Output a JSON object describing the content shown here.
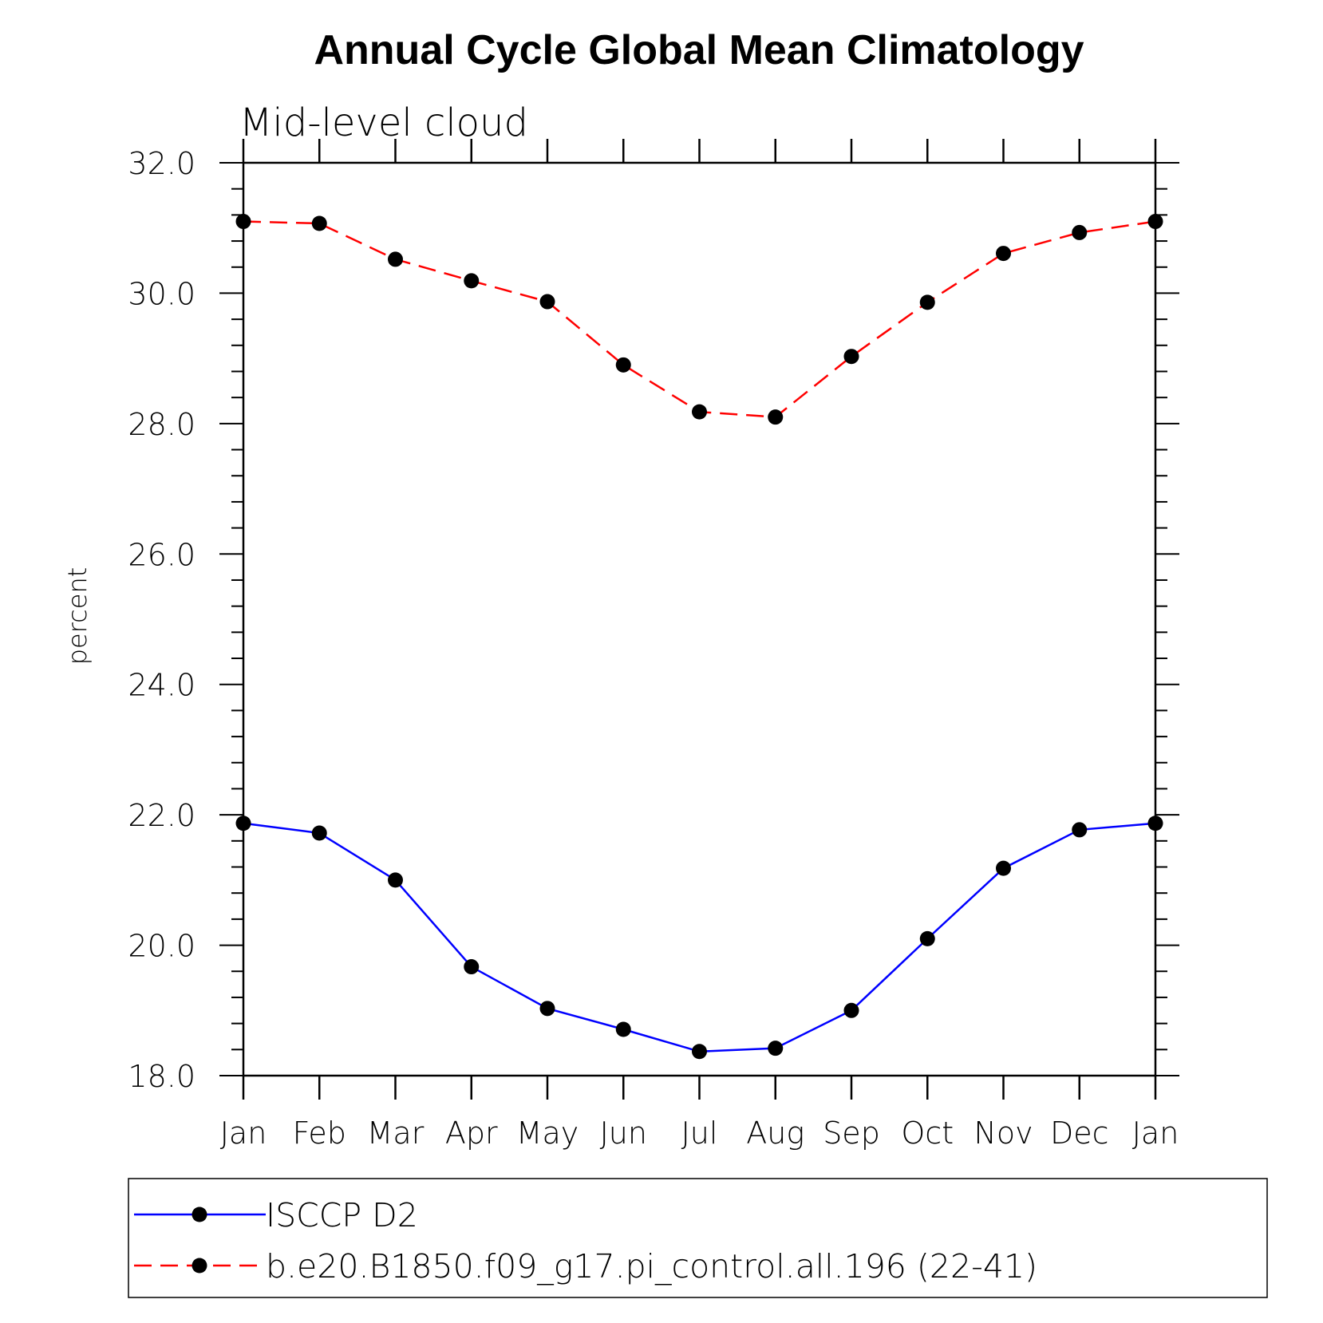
{
  "chart_data": {
    "type": "line",
    "title": "Annual Cycle Global Mean Climatology",
    "subtitle": "Mid-level cloud",
    "xlabel": "",
    "ylabel": "percent",
    "categories": [
      "Jan",
      "Feb",
      "Mar",
      "Apr",
      "May",
      "Jun",
      "Jul",
      "Aug",
      "Sep",
      "Oct",
      "Nov",
      "Dec",
      "Jan"
    ],
    "ylim": [
      18.0,
      32.0
    ],
    "yticks": [
      "18.0",
      "20.0",
      "22.0",
      "24.0",
      "26.0",
      "28.0",
      "30.0",
      "32.0"
    ],
    "grid": false,
    "legend_position": "bottom",
    "series": [
      {
        "name": "ISCCP D2",
        "color": "#0000ff",
        "line_style": "solid",
        "marker": "filled-circle",
        "values": [
          21.87,
          21.72,
          21.0,
          19.67,
          19.03,
          18.71,
          18.37,
          18.42,
          19.0,
          20.1,
          21.18,
          21.77,
          21.87
        ]
      },
      {
        "name": "b.e20.B1850.f09_g17.pi_control.all.196 (22-41)",
        "color": "#ff0000",
        "line_style": "dashed",
        "marker": "filled-circle",
        "values": [
          31.1,
          31.07,
          30.52,
          30.19,
          29.87,
          28.9,
          28.18,
          28.1,
          29.03,
          29.86,
          30.61,
          30.93,
          31.1
        ]
      }
    ]
  }
}
